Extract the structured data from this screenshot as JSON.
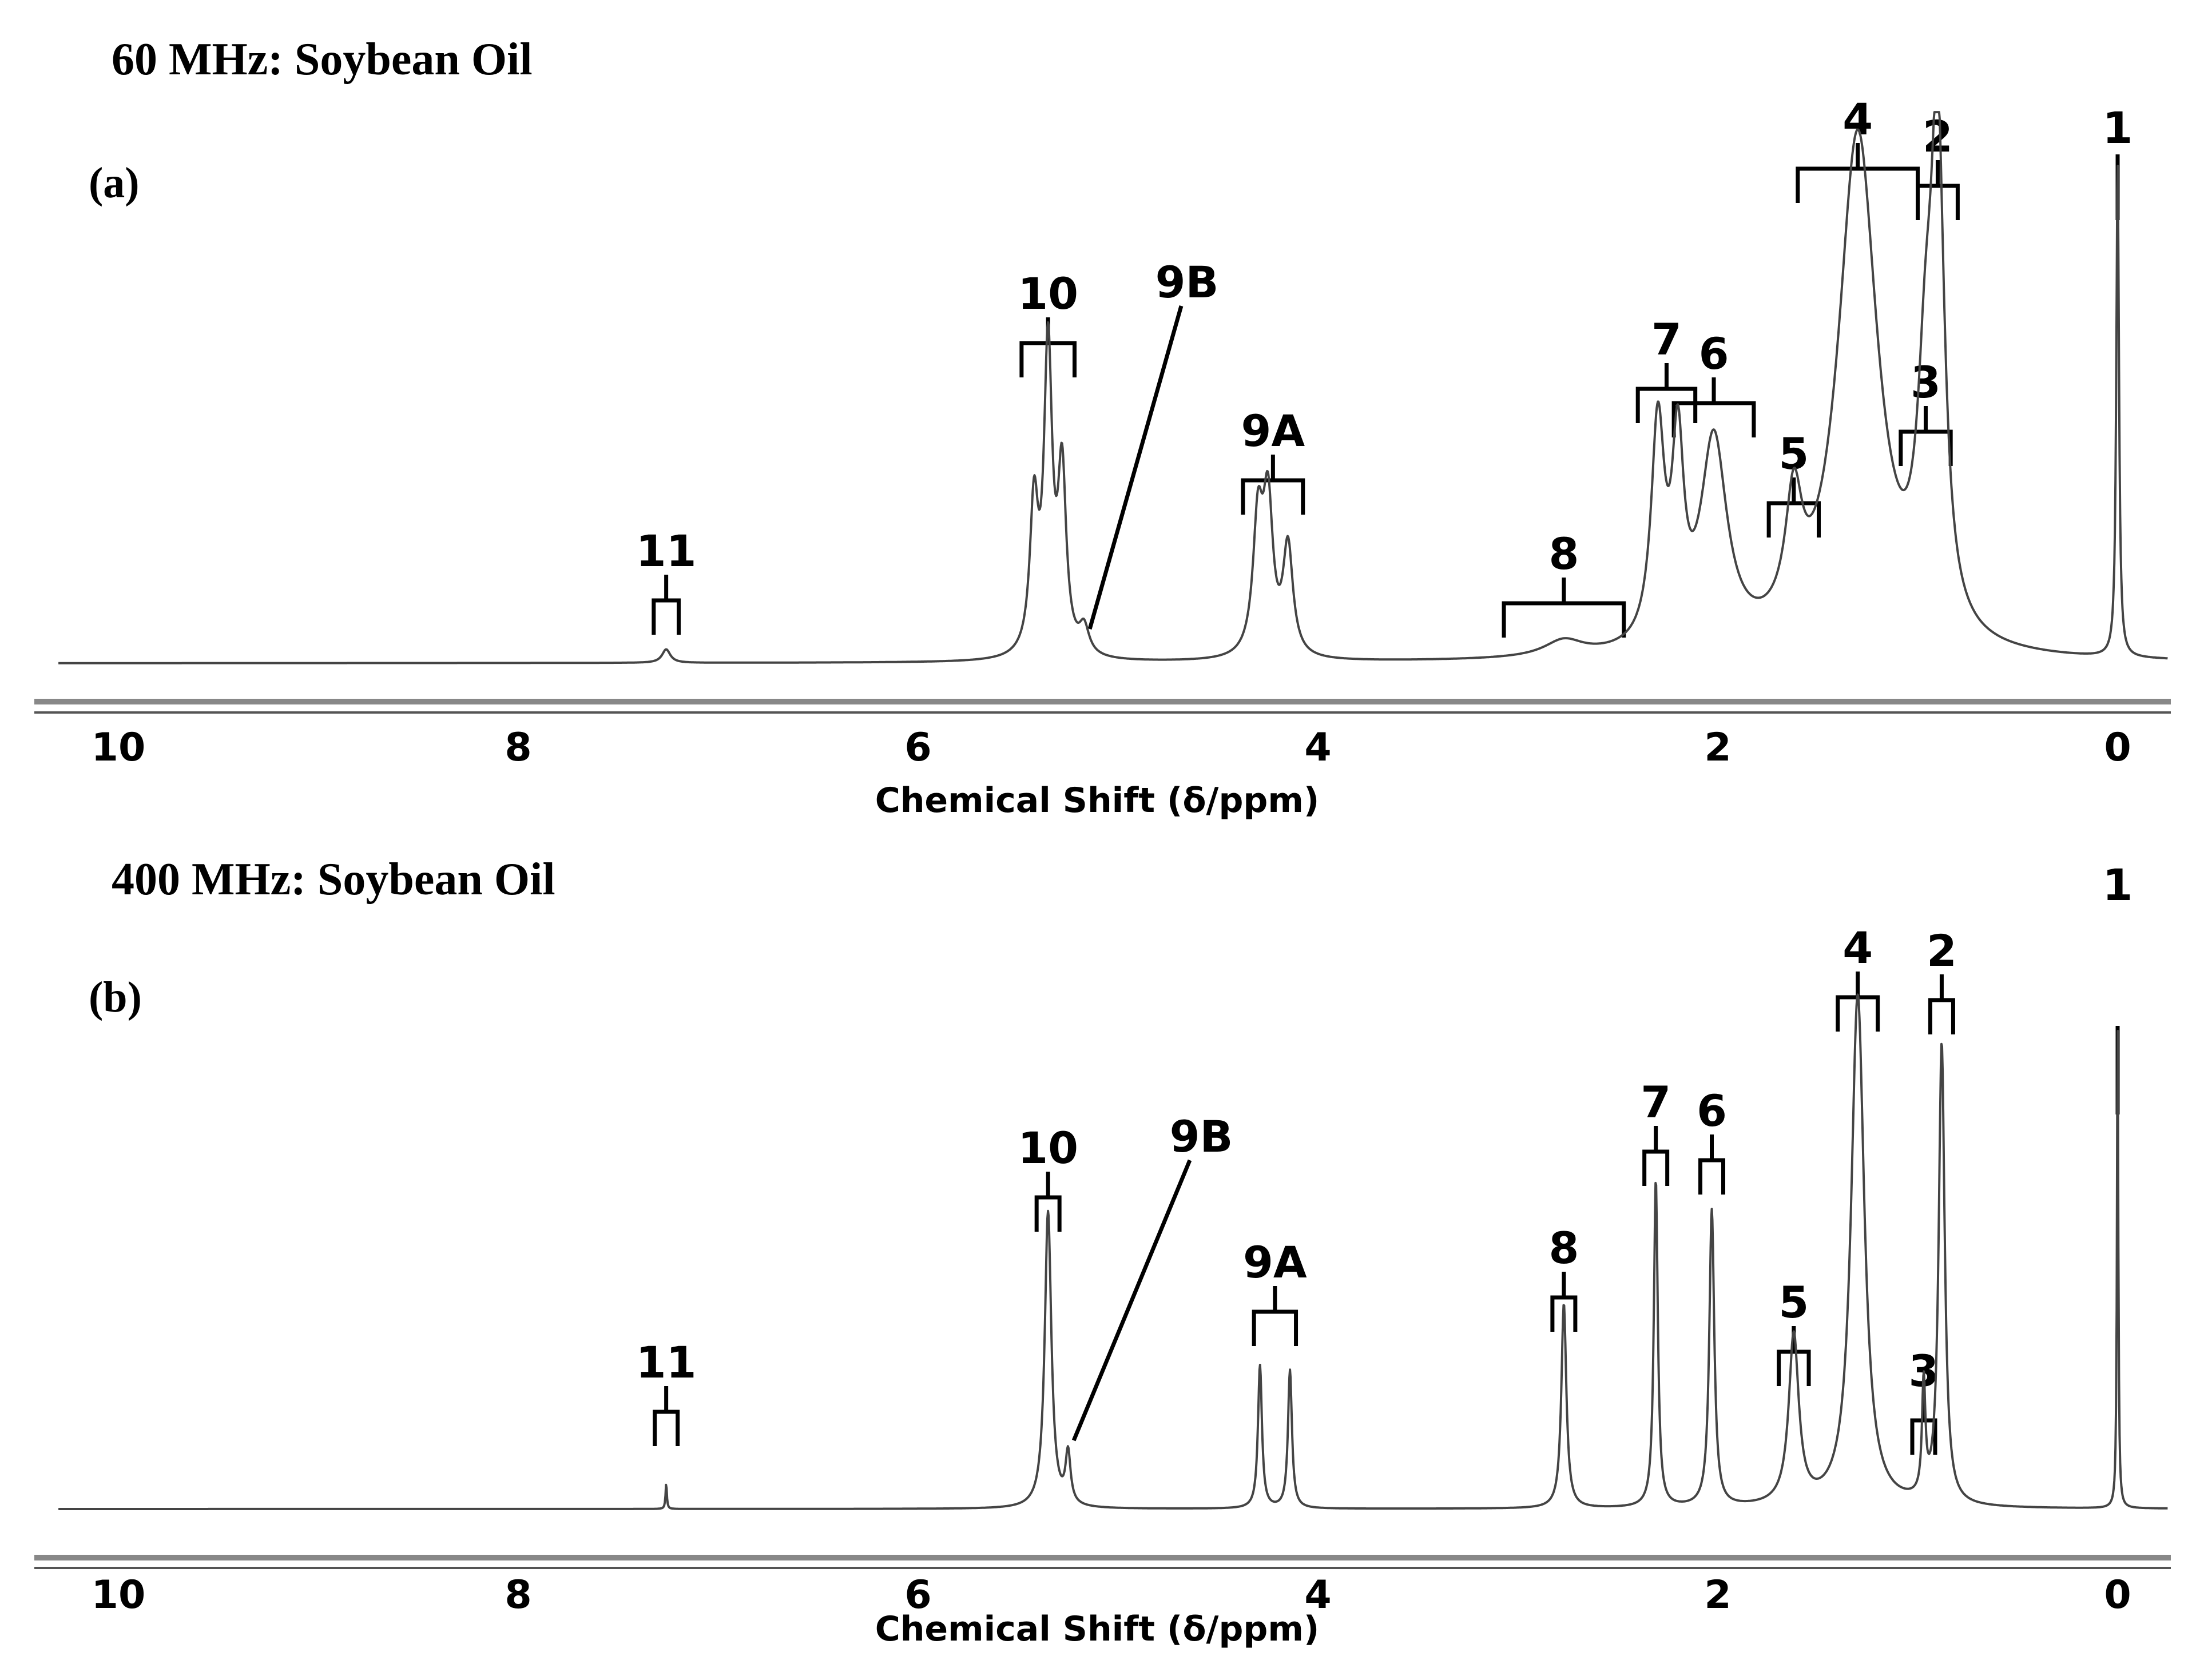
{
  "chart_data": [
    {
      "type": "line",
      "title": "60 MHz: Soybean Oil",
      "panel_label": "(a)",
      "xlabel": "Chemical Shift (δ/ppm)",
      "xlim": [
        10.3,
        -0.25
      ],
      "x_reversed": true,
      "x_ticks": [
        "10",
        "8",
        "6",
        "4",
        "2",
        "0"
      ],
      "ylim": [
        0,
        1
      ],
      "line_color": "#444444",
      "peaks": [
        {
          "label": "1",
          "center": 0.0,
          "height": 0.92,
          "width": 0.008
        },
        {
          "label": "2",
          "center": 0.9,
          "height": 0.85,
          "width": 0.04
        },
        {
          "label": "3",
          "center": 0.96,
          "height": 0.38,
          "width": 0.05
        },
        {
          "label": "4",
          "center": 1.3,
          "height": 0.96,
          "width": 0.12
        },
        {
          "label": "5",
          "center": 1.62,
          "height": 0.22,
          "width": 0.05
        },
        {
          "label": "6",
          "center": 2.02,
          "height": 0.38,
          "width": 0.08
        },
        {
          "label": "7",
          "center": 2.3,
          "height": 0.4,
          "width": 0.04
        },
        {
          "label": "7",
          "center": 2.2,
          "height": 0.34,
          "width": 0.035
        },
        {
          "label": "8",
          "center": 2.77,
          "height": 0.03,
          "width": 0.12
        },
        {
          "label": "9A",
          "center": 4.3,
          "height": 0.24,
          "width": 0.03
        },
        {
          "label": "9A",
          "center": 4.25,
          "height": 0.27,
          "width": 0.03
        },
        {
          "label": "9A",
          "center": 4.15,
          "height": 0.2,
          "width": 0.03
        },
        {
          "label": "10",
          "center": 5.42,
          "height": 0.27,
          "width": 0.025
        },
        {
          "label": "10",
          "center": 5.35,
          "height": 0.56,
          "width": 0.025
        },
        {
          "label": "10",
          "center": 5.28,
          "height": 0.33,
          "width": 0.025
        },
        {
          "label": "9B",
          "center": 5.17,
          "height": 0.05,
          "width": 0.03
        },
        {
          "label": "11",
          "center": 7.26,
          "height": 0.025,
          "width": 0.025
        }
      ],
      "bracket_labels": [
        "11",
        "10",
        "9B",
        "9A",
        "8",
        "7",
        "6",
        "5",
        "4",
        "3",
        "2",
        "1"
      ]
    },
    {
      "type": "line",
      "title": "400 MHz: Soybean Oil",
      "panel_label": "(b)",
      "xlabel": "Chemical Shift (δ/ppm)",
      "xlim": [
        10.3,
        -0.25
      ],
      "x_reversed": true,
      "x_ticks": [
        "10",
        "8",
        "6",
        "4",
        "2",
        "0"
      ],
      "ylim": [
        0,
        1
      ],
      "line_color": "#444444",
      "peaks": [
        {
          "label": "1",
          "center": 0.0,
          "height": 0.98,
          "width": 0.004
        },
        {
          "label": "2",
          "center": 0.88,
          "height": 0.9,
          "width": 0.018
        },
        {
          "label": "3",
          "center": 0.97,
          "height": 0.22,
          "width": 0.01
        },
        {
          "label": "4",
          "center": 1.3,
          "height": 1.0,
          "width": 0.04
        },
        {
          "label": "5",
          "center": 1.62,
          "height": 0.33,
          "width": 0.03
        },
        {
          "label": "6",
          "center": 2.03,
          "height": 0.58,
          "width": 0.015
        },
        {
          "label": "7",
          "center": 2.31,
          "height": 0.64,
          "width": 0.012
        },
        {
          "label": "8",
          "center": 2.77,
          "height": 0.4,
          "width": 0.015
        },
        {
          "label": "9A",
          "center": 4.29,
          "height": 0.28,
          "width": 0.012
        },
        {
          "label": "9A",
          "center": 4.14,
          "height": 0.27,
          "width": 0.012
        },
        {
          "label": "10",
          "center": 5.35,
          "height": 0.58,
          "width": 0.02
        },
        {
          "label": "9B",
          "center": 5.25,
          "height": 0.1,
          "width": 0.015
        },
        {
          "label": "11",
          "center": 7.26,
          "height": 0.05,
          "width": 0.004
        }
      ],
      "bracket_labels": [
        "11",
        "10",
        "9B",
        "9A",
        "8",
        "7",
        "6",
        "5",
        "4",
        "3",
        "2",
        "1"
      ]
    }
  ]
}
